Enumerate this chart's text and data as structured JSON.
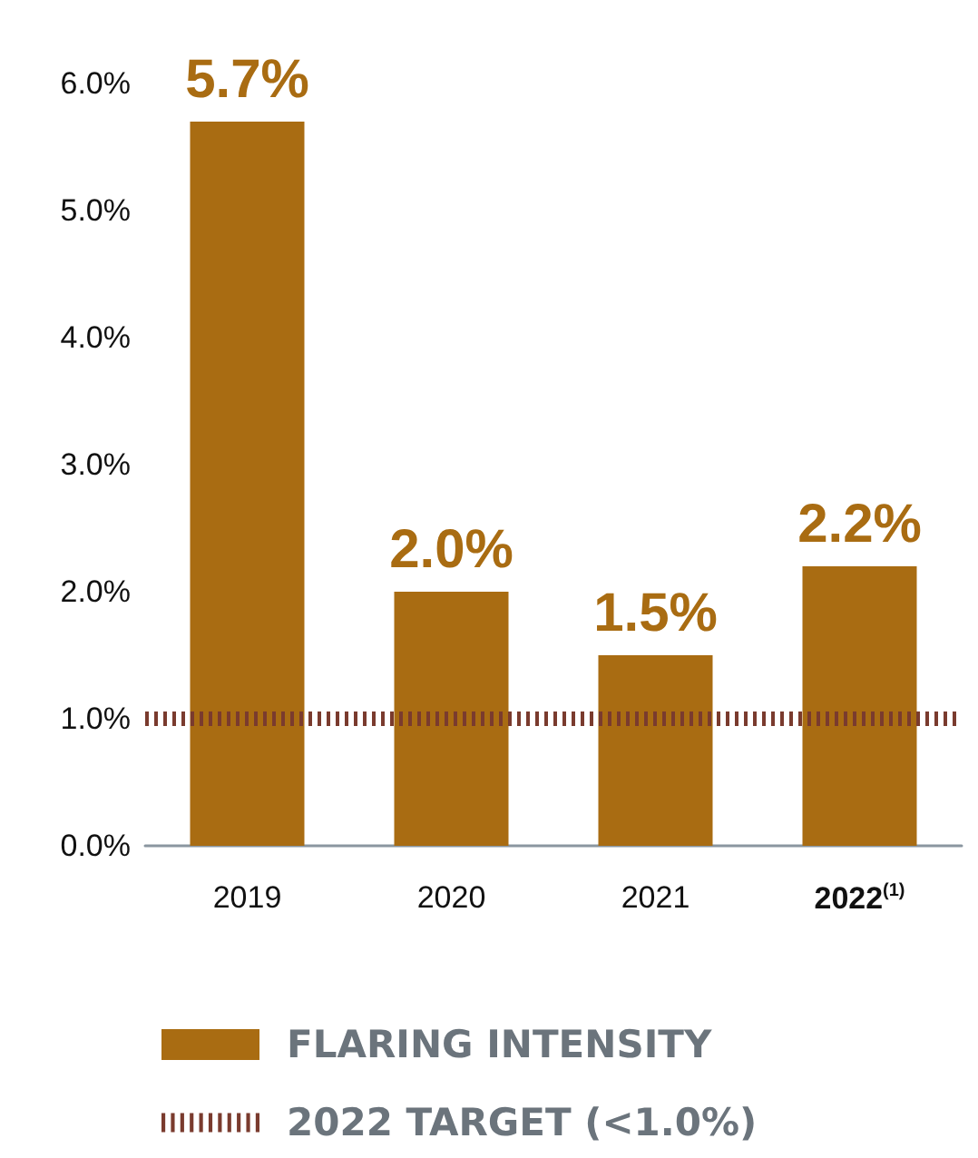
{
  "chart_data": {
    "type": "bar",
    "categories": [
      "2019",
      "2020",
      "2021",
      "2022$^{(1)}$"
    ],
    "series": [
      {
        "name": "FLARING INTENSITY",
        "color": "#a96c12",
        "values": [
          5.7,
          2.0,
          1.5,
          2.2
        ],
        "value_labels": [
          "5.7%",
          "2.0%",
          "1.5%",
          "2.2%"
        ]
      }
    ],
    "ylim": [
      0,
      6
    ],
    "yticks": [
      {
        "value": 0,
        "label": "0.0%"
      },
      {
        "value": 1,
        "label": "1.0%"
      },
      {
        "value": 2,
        "label": "2.0%"
      },
      {
        "value": 3,
        "label": "3.0%"
      },
      {
        "value": 4,
        "label": "4.0%"
      },
      {
        "value": 5,
        "label": "5.0%"
      },
      {
        "value": 6,
        "label": "6.0%"
      }
    ],
    "ref_lines": [
      {
        "axis": "y",
        "value": 1,
        "label": "2022 TARGET (<1.0%)",
        "color": "#7a3b2e",
        "line_style": "dotted"
      }
    ],
    "grid": false,
    "legend": "bottom"
  }
}
